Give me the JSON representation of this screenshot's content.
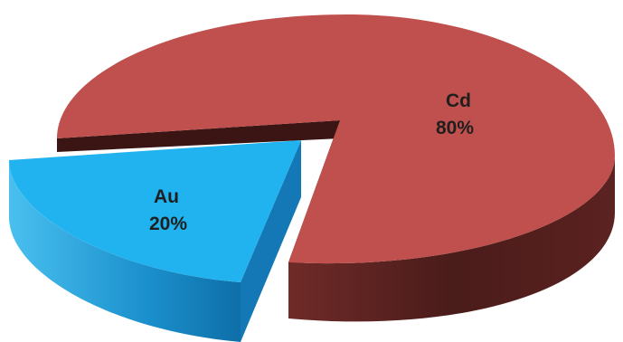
{
  "chart_data": {
    "type": "pie",
    "style": "3d-exploded",
    "title": "",
    "slices": [
      {
        "label": "Cd",
        "value": 80,
        "value_label": "80%",
        "color": "#c0504d",
        "side_color": "#4f1e1c"
      },
      {
        "label": "Au",
        "value": 20,
        "value_label": "20%",
        "color": "#1eb0ec",
        "side_color": "#0f78b4",
        "exploded": true
      }
    ]
  }
}
